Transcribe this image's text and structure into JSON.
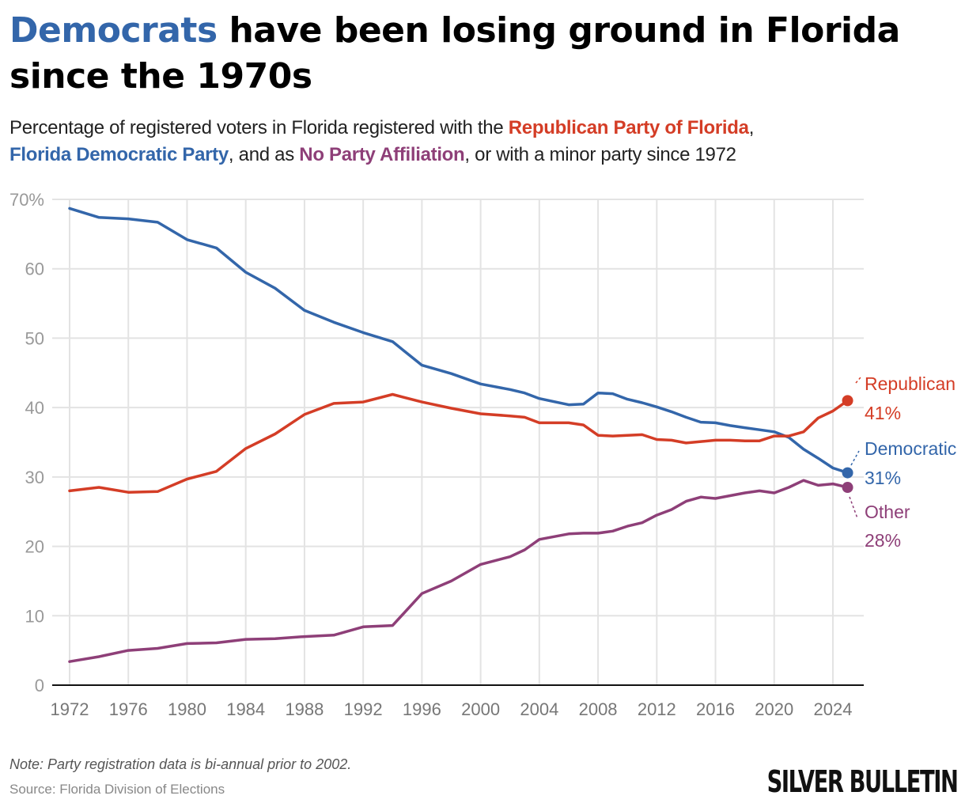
{
  "title": {
    "highlight": "Democrats",
    "rest": " have been losing ground in Florida since the 1970s"
  },
  "subtitle": {
    "part1": "Percentage of registered voters in Florida registered with the ",
    "rep": "Republican Party of Florida",
    "part2": ", ",
    "dem": "Florida Democratic Party",
    "part3": ", and as ",
    "npa": "No Party Affiliation",
    "part4": ", or with a minor party since 1972"
  },
  "colors": {
    "republican": "#d43d26",
    "democratic": "#3366aa",
    "other": "#8e3f78",
    "grid": "#e3e3e3",
    "axis": "#111111"
  },
  "footer": {
    "note": "Note: Party registration data is bi-annual prior to 2002.",
    "source": "Source: Florida Division of Elections",
    "brand": "SILVER BULLETIN"
  },
  "chart_data": {
    "type": "line",
    "title": "Democrats have been losing ground in Florida since the 1970s",
    "xlabel": "",
    "ylabel": "",
    "xlim": [
      1971,
      2026
    ],
    "ylim": [
      0,
      70
    ],
    "grid": true,
    "y_ticks": [
      0,
      10,
      20,
      30,
      40,
      50,
      60,
      70
    ],
    "y_tick_labels": [
      "0",
      "10",
      "20",
      "30",
      "40",
      "50",
      "60",
      "70%"
    ],
    "x_ticks": [
      1972,
      1976,
      1980,
      1984,
      1988,
      1992,
      1996,
      2000,
      2004,
      2008,
      2012,
      2016,
      2020,
      2024
    ],
    "x_tick_labels": [
      "1972",
      "1976",
      "1980",
      "1984",
      "1988",
      "1992",
      "1996",
      "2000",
      "2004",
      "2008",
      "2012",
      "2016",
      "2020",
      "2024"
    ],
    "x": [
      1972,
      1974,
      1976,
      1978,
      1980,
      1982,
      1984,
      1986,
      1988,
      1990,
      1992,
      1994,
      1996,
      1998,
      2000,
      2002,
      2003,
      2004,
      2006,
      2007,
      2008,
      2009,
      2010,
      2011,
      2012,
      2013,
      2014,
      2015,
      2016,
      2017,
      2018,
      2019,
      2020,
      2021,
      2022,
      2023,
      2024,
      2025
    ],
    "series": [
      {
        "name": "Democratic",
        "key": "democratic",
        "end_label": "Democratic",
        "end_value_label": "31%",
        "values": [
          68.7,
          67.4,
          67.2,
          66.7,
          64.2,
          63.0,
          59.5,
          57.2,
          54.0,
          52.3,
          50.8,
          49.5,
          46.1,
          44.9,
          43.4,
          42.6,
          42.1,
          41.3,
          40.4,
          40.5,
          42.1,
          42.0,
          41.2,
          40.7,
          40.1,
          39.4,
          38.6,
          37.9,
          37.8,
          37.4,
          37.1,
          36.8,
          36.5,
          35.7,
          34.0,
          32.7,
          31.3,
          30.6
        ]
      },
      {
        "name": "Republican",
        "key": "republican",
        "end_label": "Republican",
        "end_value_label": "41%",
        "values": [
          28.0,
          28.5,
          27.8,
          27.9,
          29.7,
          30.8,
          34.1,
          36.2,
          39.0,
          40.6,
          40.8,
          41.9,
          40.8,
          39.9,
          39.1,
          38.8,
          38.6,
          37.8,
          37.8,
          37.5,
          36.0,
          35.9,
          36.0,
          36.1,
          35.4,
          35.3,
          34.9,
          35.1,
          35.3,
          35.3,
          35.2,
          35.2,
          35.9,
          35.9,
          36.5,
          38.5,
          39.5,
          41.0
        ]
      },
      {
        "name": "Other",
        "key": "other",
        "end_label": "Other",
        "end_value_label": "28%",
        "values": [
          3.4,
          4.1,
          5.0,
          5.3,
          6.0,
          6.1,
          6.6,
          6.7,
          7.0,
          7.2,
          8.4,
          8.6,
          13.2,
          15.0,
          17.4,
          18.5,
          19.5,
          21.0,
          21.8,
          21.9,
          21.9,
          22.2,
          22.9,
          23.4,
          24.5,
          25.3,
          26.5,
          27.1,
          26.9,
          27.3,
          27.7,
          28.0,
          27.7,
          28.5,
          29.5,
          28.8,
          29.0,
          28.5
        ]
      }
    ],
    "legend": "direct-labels-right"
  }
}
